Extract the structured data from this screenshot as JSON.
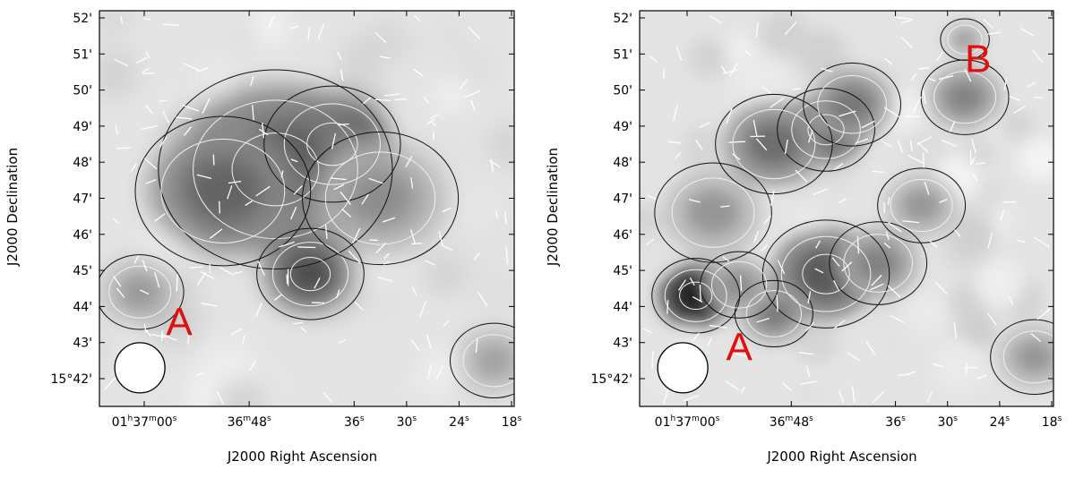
{
  "chart_data": [
    {
      "type": "heatmap",
      "title": "",
      "xlabel": "J2000 Right Ascension",
      "ylabel": "J2000 Declination",
      "x_ticks": [
        {
          "ra_s": 60,
          "h": "01",
          "hu": "h",
          "m": "37",
          "mu": "m",
          "s": "00",
          "su": "s"
        },
        {
          "ra_s": 48,
          "m": "36",
          "mu": "m",
          "s": "48",
          "su": "s"
        },
        {
          "ra_s": 36,
          "s": "36",
          "su": "s"
        },
        {
          "ra_s": 30,
          "s": "30",
          "su": "s"
        },
        {
          "ra_s": 24,
          "s": "24",
          "su": "s"
        },
        {
          "ra_s": 18,
          "s": "18",
          "su": "s"
        }
      ],
      "xlim_ra_s": [
        64.5,
        18
      ],
      "y_ticks": [
        {
          "dec_arcmin": 52,
          "label": "52'"
        },
        {
          "dec_arcmin": 51,
          "label": "51'"
        },
        {
          "dec_arcmin": 50,
          "label": "50'"
        },
        {
          "dec_arcmin": 49,
          "label": "49'"
        },
        {
          "dec_arcmin": 48,
          "label": "48'"
        },
        {
          "dec_arcmin": 47,
          "label": "47'"
        },
        {
          "dec_arcmin": 46,
          "label": "46'"
        },
        {
          "dec_arcmin": 45,
          "label": "45'"
        },
        {
          "dec_arcmin": 44,
          "label": "44'"
        },
        {
          "dec_arcmin": 43,
          "label": "43'"
        },
        {
          "dec_arcmin": 42,
          "label": "15°42'"
        }
      ],
      "ylim_dec_arcmin": [
        41.3,
        52.4
      ],
      "colormap": "grayscale",
      "emission_peaks": [
        {
          "ra_s": 38.5,
          "dec": 48.5,
          "strength": 1.0,
          "width": 1.4
        },
        {
          "ra_s": 45,
          "dec": 47.8,
          "strength": 0.65,
          "width": 2.4
        },
        {
          "ra_s": 41,
          "dec": 44.9,
          "strength": 0.75,
          "width": 1.1
        },
        {
          "ra_s": 51,
          "dec": 47.2,
          "strength": 0.6,
          "width": 1.8
        },
        {
          "ra_s": 33,
          "dec": 47,
          "strength": 0.4,
          "width": 1.6
        },
        {
          "ra_s": 60.5,
          "dec": 44.4,
          "strength": 0.4,
          "width": 0.9
        },
        {
          "ra_s": 20,
          "dec": 42.5,
          "strength": 0.35,
          "width": 0.9
        }
      ],
      "annotations": [
        {
          "text": "A",
          "ra_s": 56,
          "dec": 43.6
        }
      ],
      "beam": {
        "ra_s": 60.5,
        "dec": 42.3
      },
      "polarization_vectors": "white"
    },
    {
      "type": "heatmap",
      "title": "",
      "xlabel": "J2000 Right Ascension",
      "ylabel": "J2000 Declination",
      "x_ticks": [
        {
          "ra_s": 60,
          "h": "01",
          "hu": "h",
          "m": "37",
          "mu": "m",
          "s": "00",
          "su": "s"
        },
        {
          "ra_s": 48,
          "m": "36",
          "mu": "m",
          "s": "48",
          "su": "s"
        },
        {
          "ra_s": 36,
          "s": "36",
          "su": "s"
        },
        {
          "ra_s": 30,
          "s": "30",
          "su": "s"
        },
        {
          "ra_s": 24,
          "s": "24",
          "su": "s"
        },
        {
          "ra_s": 18,
          "s": "18",
          "su": "s"
        }
      ],
      "xlim_ra_s": [
        64.5,
        18
      ],
      "y_ticks": [
        {
          "dec_arcmin": 52,
          "label": "52'"
        },
        {
          "dec_arcmin": 51,
          "label": "51'"
        },
        {
          "dec_arcmin": 50,
          "label": "50'"
        },
        {
          "dec_arcmin": 49,
          "label": "49'"
        },
        {
          "dec_arcmin": 48,
          "label": "48'"
        },
        {
          "dec_arcmin": 47,
          "label": "47'"
        },
        {
          "dec_arcmin": 46,
          "label": "46'"
        },
        {
          "dec_arcmin": 45,
          "label": "45'"
        },
        {
          "dec_arcmin": 44,
          "label": "44'"
        },
        {
          "dec_arcmin": 43,
          "label": "43'"
        },
        {
          "dec_arcmin": 42,
          "label": "15°42'"
        }
      ],
      "ylim_dec_arcmin": [
        41.3,
        52.4
      ],
      "colormap": "grayscale",
      "emission_peaks": [
        {
          "ra_s": 59,
          "dec": 44.3,
          "strength": 0.95,
          "width": 0.9
        },
        {
          "ra_s": 44,
          "dec": 44.9,
          "strength": 0.65,
          "width": 1.3
        },
        {
          "ra_s": 50,
          "dec": 43.8,
          "strength": 0.5,
          "width": 0.8
        },
        {
          "ra_s": 44,
          "dec": 48.9,
          "strength": 0.7,
          "width": 1.0
        },
        {
          "ra_s": 50,
          "dec": 48.5,
          "strength": 0.55,
          "width": 1.2
        },
        {
          "ra_s": 41,
          "dec": 49.6,
          "strength": 0.5,
          "width": 1.0
        },
        {
          "ra_s": 28,
          "dec": 49.8,
          "strength": 0.45,
          "width": 0.9
        },
        {
          "ra_s": 57,
          "dec": 46.6,
          "strength": 0.35,
          "width": 1.2
        },
        {
          "ra_s": 33,
          "dec": 46.8,
          "strength": 0.35,
          "width": 0.9
        },
        {
          "ra_s": 28,
          "dec": 51.4,
          "strength": 0.35,
          "width": 0.5
        },
        {
          "ra_s": 54,
          "dec": 44.6,
          "strength": 0.4,
          "width": 0.8
        },
        {
          "ra_s": 20,
          "dec": 42.6,
          "strength": 0.35,
          "width": 0.9
        },
        {
          "ra_s": 38,
          "dec": 45.2,
          "strength": 0.45,
          "width": 1.0
        }
      ],
      "annotations": [
        {
          "text": "A",
          "ra_s": 54,
          "dec": 42.9
        },
        {
          "text": "B",
          "ra_s": 26.5,
          "dec": 50.9
        }
      ],
      "beam": {
        "ra_s": 60.5,
        "dec": 42.3
      },
      "polarization_vectors": "white"
    }
  ]
}
